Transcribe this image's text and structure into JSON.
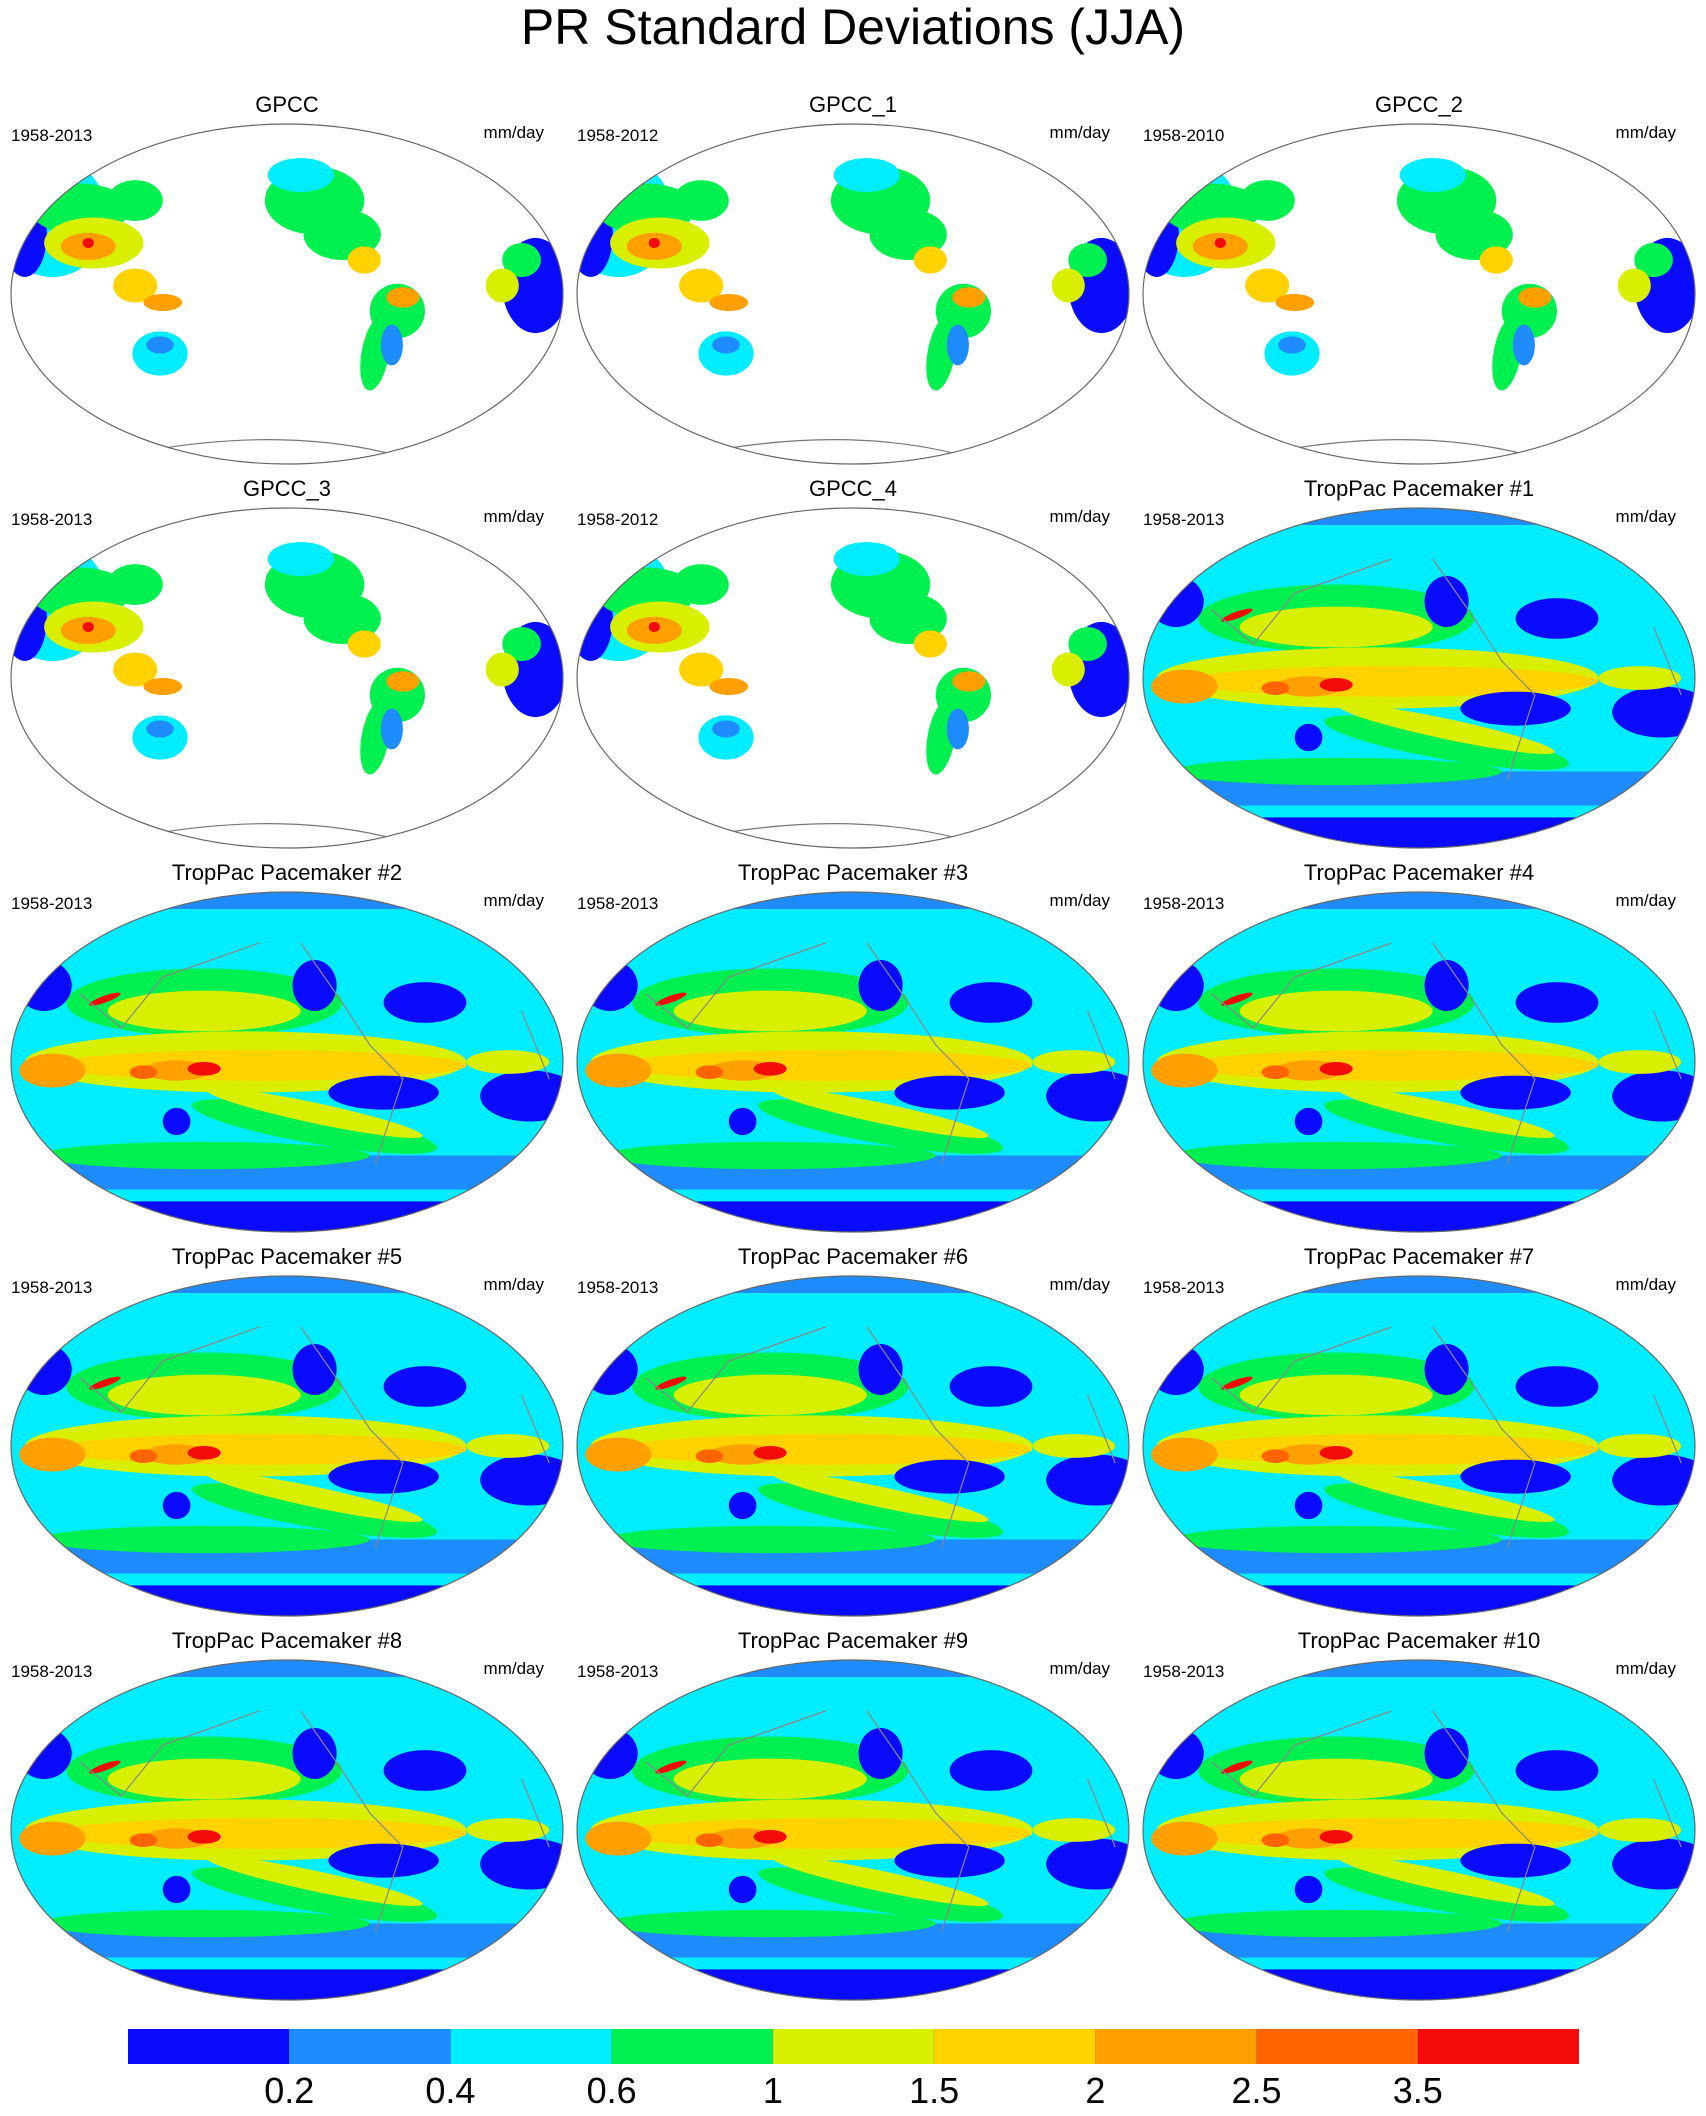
{
  "title": "PR Standard Deviations (JJA)",
  "panels": [
    {
      "title": "GPCC",
      "period": "1958-2013",
      "units": "mm/day"
    },
    {
      "title": "GPCC_1",
      "period": "1958-2012",
      "units": "mm/day"
    },
    {
      "title": "GPCC_2",
      "period": "1958-2010",
      "units": "mm/day"
    },
    {
      "title": "GPCC_3",
      "period": "1958-2013",
      "units": "mm/day"
    },
    {
      "title": "GPCC_4",
      "period": "1958-2012",
      "units": "mm/day"
    },
    {
      "title": "TropPac Pacemaker #1",
      "period": "1958-2013",
      "units": "mm/day"
    },
    {
      "title": "TropPac Pacemaker #2",
      "period": "1958-2013",
      "units": "mm/day"
    },
    {
      "title": "TropPac Pacemaker #3",
      "period": "1958-2013",
      "units": "mm/day"
    },
    {
      "title": "TropPac Pacemaker #4",
      "period": "1958-2013",
      "units": "mm/day"
    },
    {
      "title": "TropPac Pacemaker #5",
      "period": "1958-2013",
      "units": "mm/day"
    },
    {
      "title": "TropPac Pacemaker #6",
      "period": "1958-2013",
      "units": "mm/day"
    },
    {
      "title": "TropPac Pacemaker #7",
      "period": "1958-2013",
      "units": "mm/day"
    },
    {
      "title": "TropPac Pacemaker #8",
      "period": "1958-2013",
      "units": "mm/day"
    },
    {
      "title": "TropPac Pacemaker #9",
      "period": "1958-2013",
      "units": "mm/day"
    },
    {
      "title": "TropPac Pacemaker #10",
      "period": "1958-2013",
      "units": "mm/day"
    }
  ],
  "colorbar": {
    "levels": [
      0.2,
      0.4,
      0.6,
      1,
      1.5,
      2,
      2.5,
      3.5
    ],
    "colors": [
      "#0a0aff",
      "#1e8cff",
      "#00ecff",
      "#00f050",
      "#d8f000",
      "#ffd200",
      "#ffa000",
      "#ff6400",
      "#f50a0a"
    ]
  }
}
